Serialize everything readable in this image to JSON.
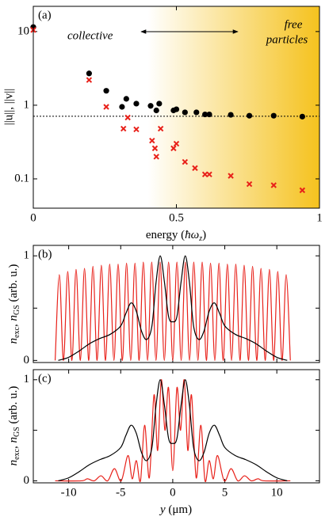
{
  "chart_data": [
    {
      "type": "scatter",
      "panel_label": "(a)",
      "annotation_left": "collective",
      "annotation_right": [
        "free",
        "particles"
      ],
      "y_label": "||u||, ||v||",
      "x_label_parts": [
        "energy (",
        "ħω",
        "z",
        ")"
      ],
      "xlim": [
        0,
        1.0
      ],
      "ylim": [
        0.04,
        22
      ],
      "log_y": true,
      "xticks": [
        0,
        0.5,
        1
      ],
      "yticks": [
        0.1,
        1,
        10
      ],
      "hline": 0.707,
      "series": [
        {
          "color": "#000000",
          "marker": "circle",
          "x": [
            0.0,
            0.195,
            0.255,
            0.31,
            0.325,
            0.36,
            0.41,
            0.43,
            0.44,
            0.49,
            0.5,
            0.53,
            0.57,
            0.6,
            0.615,
            0.69,
            0.755,
            0.84,
            0.94
          ],
          "values": [
            11.5,
            2.7,
            1.57,
            0.95,
            1.22,
            1.05,
            0.98,
            0.85,
            1.05,
            0.85,
            0.88,
            0.8,
            0.8,
            0.75,
            0.75,
            0.74,
            0.72,
            0.72,
            0.7
          ]
        },
        {
          "color": "#e8211a",
          "marker": "cross",
          "x": [
            0.0,
            0.195,
            0.255,
            0.315,
            0.33,
            0.36,
            0.415,
            0.425,
            0.43,
            0.445,
            0.49,
            0.5,
            0.53,
            0.565,
            0.6,
            0.615,
            0.69,
            0.755,
            0.84,
            0.94
          ],
          "values": [
            10.5,
            2.2,
            0.95,
            0.48,
            0.68,
            0.47,
            0.33,
            0.26,
            0.2,
            0.48,
            0.26,
            0.3,
            0.17,
            0.14,
            0.115,
            0.115,
            0.11,
            0.085,
            0.082,
            0.07
          ]
        }
      ]
    },
    {
      "type": "line",
      "panel_label": "(b)",
      "y_label_parts": [
        "n",
        "exc",
        ", ",
        "n",
        "GS",
        " (arb. u.)"
      ],
      "xlim": [
        -13.4,
        14.1
      ],
      "ylim": [
        -0.02,
        1.1
      ],
      "xtick_marks": [
        -10,
        -5,
        0,
        5,
        10
      ],
      "yticks": [
        0,
        1
      ],
      "ytick_marks": [
        0.5
      ],
      "series": [
        {
          "color": "#e8211a",
          "x": [
            -11.3,
            -10.9,
            -10.5,
            -10.09,
            -9.69,
            -9.29,
            -8.88,
            -8.48,
            -8.07,
            -7.67,
            -7.27,
            -6.86,
            -6.46,
            -6.06,
            -5.65,
            -5.25,
            -4.84,
            -4.44,
            -4.04,
            -3.63,
            -3.23,
            -2.83,
            -2.42,
            -2.02,
            -1.61,
            -1.21,
            -0.81,
            -0.4,
            0,
            0.4,
            0.81,
            1.21,
            1.61,
            2.02,
            2.42,
            2.83,
            3.23,
            3.63,
            4.04,
            4.44,
            4.84,
            5.25,
            5.65,
            6.06,
            6.46,
            6.86,
            7.27,
            7.67,
            8.07,
            8.48,
            8.88,
            9.29,
            9.69,
            10.09,
            10.5,
            10.9,
            11.3
          ],
          "values": [
            0,
            0.82,
            0,
            0.85,
            0,
            0.87,
            0,
            0.88,
            0,
            0.9,
            0,
            0.91,
            0,
            0.92,
            0,
            0.92,
            0,
            0.93,
            0,
            0.93,
            0,
            0.94,
            0,
            0.94,
            0,
            0.94,
            0,
            0.94,
            0,
            0.94,
            0,
            0.94,
            0,
            0.94,
            0,
            0.94,
            0,
            0.93,
            0,
            0.93,
            0,
            0.92,
            0,
            0.92,
            0,
            0.91,
            0,
            0.9,
            0,
            0.88,
            0,
            0.87,
            0,
            0.85,
            0,
            0.82,
            0
          ]
        },
        {
          "color": "#000000",
          "x": [
            -11,
            -10,
            -9,
            -8,
            -7,
            -6,
            -5,
            -4.5,
            -4,
            -3.5,
            -3,
            -2.5,
            -2,
            -1.6,
            -1.2,
            -0.8,
            -0.4,
            0,
            0.4,
            0.8,
            1.2,
            1.6,
            2,
            2.5,
            3,
            3.5,
            4,
            4.5,
            5,
            6,
            7,
            8,
            9,
            10,
            11
          ],
          "values": [
            0,
            0.03,
            0.09,
            0.16,
            0.21,
            0.25,
            0.33,
            0.45,
            0.55,
            0.47,
            0.28,
            0.2,
            0.33,
            0.75,
            1.0,
            0.75,
            0.42,
            0.37,
            0.42,
            0.75,
            1.0,
            0.75,
            0.33,
            0.2,
            0.28,
            0.47,
            0.55,
            0.45,
            0.33,
            0.25,
            0.21,
            0.16,
            0.09,
            0.03,
            0
          ]
        }
      ]
    },
    {
      "type": "line",
      "panel_label": "(c)",
      "y_label_parts": [
        "n",
        "exc",
        ", ",
        "n",
        "GS",
        " (arb. u.)"
      ],
      "x_label_parts": [
        "y",
        " (μm)"
      ],
      "xlim": [
        -13.4,
        14.1
      ],
      "ylim": [
        -0.02,
        1.1
      ],
      "xticks": [
        -10,
        -5,
        0,
        5,
        10
      ],
      "yticks": [
        0,
        1
      ],
      "ytick_marks": [
        0.5
      ],
      "series": [
        {
          "color": "#e8211a",
          "x": [
            -11.3,
            -8.8,
            -8.2,
            -7.55,
            -6.9,
            -6.25,
            -5.6,
            -4.95,
            -4.3,
            -3.9,
            -3.5,
            -3.1,
            -2.7,
            -2.25,
            -1.8,
            -1.45,
            -1.1,
            -0.75,
            -0.4,
            0,
            0.4,
            0.75,
            1.1,
            1.45,
            1.8,
            2.25,
            2.7,
            3.1,
            3.5,
            3.9,
            4.3,
            4.95,
            5.6,
            6.25,
            6.9,
            7.55,
            8.2,
            8.8,
            11.3
          ],
          "values": [
            0,
            0,
            0.02,
            0,
            0.05,
            0,
            0.12,
            0,
            0.25,
            0.02,
            0.2,
            0,
            0.55,
            0.03,
            0.85,
            0.3,
            1.0,
            0.5,
            0.92,
            0.1,
            0.92,
            0.5,
            1.0,
            0.3,
            0.85,
            0.03,
            0.55,
            0,
            0.2,
            0.02,
            0.25,
            0,
            0.12,
            0,
            0.05,
            0,
            0.02,
            0,
            0
          ]
        },
        {
          "color": "#000000",
          "x": [
            -11,
            -10,
            -9,
            -8,
            -7,
            -6,
            -5,
            -4.5,
            -4,
            -3.5,
            -3,
            -2.5,
            -2,
            -1.6,
            -1.2,
            -0.8,
            -0.4,
            0,
            0.4,
            0.8,
            1.2,
            1.6,
            2,
            2.5,
            3,
            3.5,
            4,
            4.5,
            5,
            6,
            7,
            8,
            9,
            10,
            11
          ],
          "values": [
            0,
            0.03,
            0.09,
            0.16,
            0.21,
            0.25,
            0.33,
            0.45,
            0.55,
            0.47,
            0.28,
            0.2,
            0.33,
            0.75,
            1.0,
            0.75,
            0.42,
            0.37,
            0.42,
            0.75,
            1.0,
            0.75,
            0.33,
            0.2,
            0.28,
            0.47,
            0.55,
            0.45,
            0.33,
            0.25,
            0.21,
            0.16,
            0.09,
            0.03,
            0
          ]
        }
      ]
    }
  ]
}
